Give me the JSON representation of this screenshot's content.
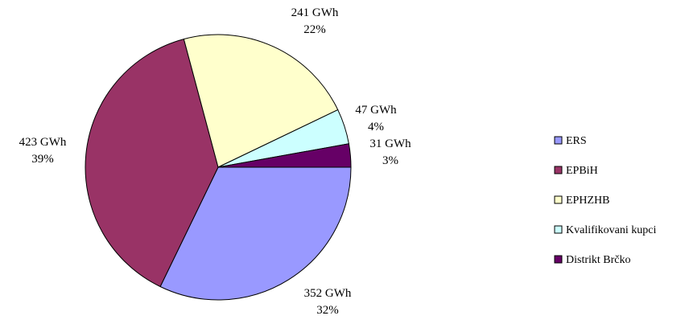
{
  "chart_data": {
    "type": "pie",
    "unit": "GWh",
    "slices": [
      {
        "name": "ERS",
        "value": 352,
        "value_label": "352 GWh",
        "percent_label": "32%",
        "color": "#9999ff"
      },
      {
        "name": "EPBiH",
        "value": 423,
        "value_label": "423 GWh",
        "percent_label": "39%",
        "color": "#993366"
      },
      {
        "name": "EPHZHB",
        "value": 241,
        "value_label": "241 GWh",
        "percent_label": "22%",
        "color": "#ffffcc"
      },
      {
        "name": "Kvalifikovani kupci",
        "value": 47,
        "value_label": "47 GWh",
        "percent_label": "4%",
        "color": "#ccffff"
      },
      {
        "name": "Distrikt Brčko",
        "value": 31,
        "value_label": "31 GWh",
        "percent_label": "3%",
        "color": "#660066"
      }
    ],
    "legend_position": "right"
  }
}
